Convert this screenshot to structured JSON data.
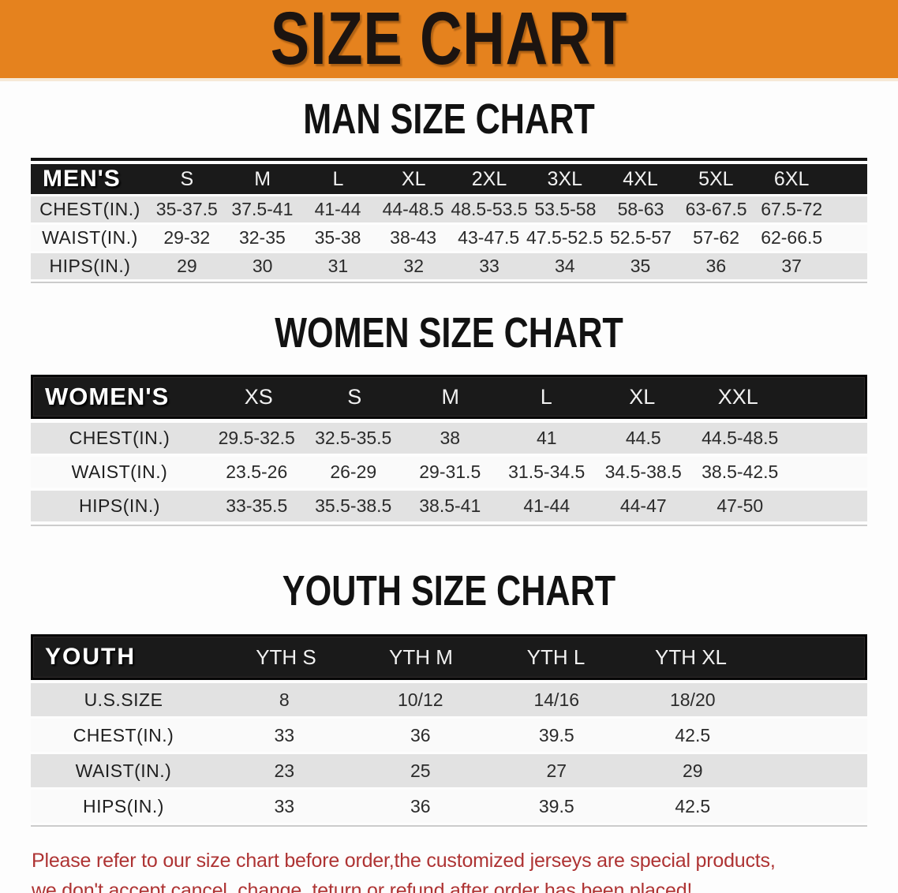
{
  "banner": {
    "title": "SIZE CHART"
  },
  "sections": [
    {
      "heading": "MAN SIZE CHART",
      "table": {
        "header": {
          "label": "MEN'S",
          "sizes": [
            "S",
            "M",
            "L",
            "XL",
            "2XL",
            "3XL",
            "4XL",
            "5XL",
            "6XL"
          ]
        },
        "rows": [
          {
            "label": "CHEST(IN.)",
            "values": [
              "35-37.5",
              "37.5-41",
              "41-44",
              "44-48.5",
              "48.5-53.5",
              "53.5-58",
              "58-63",
              "63-67.5",
              "67.5-72"
            ]
          },
          {
            "label": "WAIST(IN.)",
            "values": [
              "29-32",
              "32-35",
              "35-38",
              "38-43",
              "43-47.5",
              "47.5-52.5",
              "52.5-57",
              "57-62",
              "62-66.5"
            ]
          },
          {
            "label": "HIPS(IN.)",
            "values": [
              "29",
              "30",
              "31",
              "32",
              "33",
              "34",
              "35",
              "36",
              "37"
            ]
          }
        ]
      }
    },
    {
      "heading": "WOMEN SIZE CHART",
      "table": {
        "header": {
          "label": "WOMEN'S",
          "sizes": [
            "XS",
            "S",
            "M",
            "L",
            "XL",
            "XXL"
          ]
        },
        "rows": [
          {
            "label": "CHEST(IN.)",
            "values": [
              "29.5-32.5",
              "32.5-35.5",
              "38",
              "41",
              "44.5",
              "44.5-48.5"
            ]
          },
          {
            "label": "WAIST(IN.)",
            "values": [
              "23.5-26",
              "26-29",
              "29-31.5",
              "31.5-34.5",
              "34.5-38.5",
              "38.5-42.5"
            ]
          },
          {
            "label": "HIPS(IN.)",
            "values": [
              "33-35.5",
              "35.5-38.5",
              "38.5-41",
              "41-44",
              "44-47",
              "47-50"
            ]
          }
        ]
      }
    },
    {
      "heading": "YOUTH SIZE CHART",
      "table": {
        "header": {
          "label": "YOUTH",
          "sizes": [
            "YTH S",
            "YTH M",
            "YTH L",
            "YTH XL"
          ]
        },
        "rows": [
          {
            "label": "U.S.SIZE",
            "values": [
              "8",
              "10/12",
              "14/16",
              "18/20"
            ]
          },
          {
            "label": "CHEST(IN.)",
            "values": [
              "33",
              "36",
              "39.5",
              "42.5"
            ]
          },
          {
            "label": "WAIST(IN.)",
            "values": [
              "23",
              "25",
              "27",
              "29"
            ]
          },
          {
            "label": "HIPS(IN.)",
            "values": [
              "33",
              "36",
              "39.5",
              "42.5"
            ]
          }
        ]
      }
    }
  ],
  "disclaimer": {
    "line1": "Please refer to our size chart before order,the customized jerseys are special products,",
    "line2": "we don't accept cancel, change, teturn or refund after order has been placed!"
  },
  "colors": {
    "banner_bg": "#e5821e",
    "banner_border": "#f6e9d7",
    "header_bar": "#1a1a1a",
    "row_gray": "#e2e2e2",
    "row_white": "#fafafa",
    "text_dark": "#222222",
    "disclaimer_red": "#ae3333"
  }
}
